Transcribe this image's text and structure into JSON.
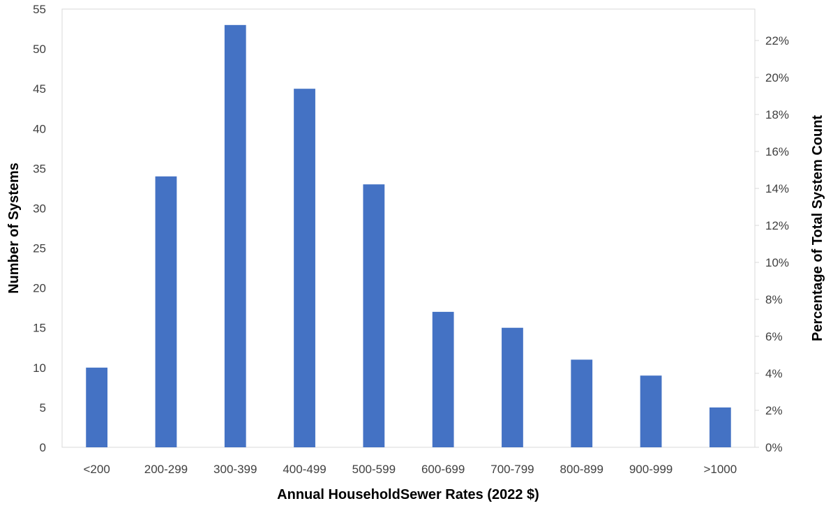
{
  "chart_data": {
    "type": "bar",
    "categories": [
      "<200",
      "200-299",
      "300-399",
      "400-499",
      "500-599",
      "600-699",
      "700-799",
      "800-899",
      "900-999",
      ">1000"
    ],
    "values": [
      10,
      34,
      53,
      45,
      33,
      17,
      15,
      11,
      9,
      5
    ],
    "xlabel": "Annual HouseholdSewer Rates (2022 $)",
    "ylabel": "Number of Systems",
    "y2label": "Percentage of Total System Count",
    "ylim": [
      0,
      55
    ],
    "yticks": [
      "0",
      "5",
      "10",
      "15",
      "20",
      "25",
      "30",
      "35",
      "40",
      "45",
      "50",
      "55"
    ],
    "y2lim_percent": [
      0,
      23.7
    ],
    "y2ticks": [
      "0%",
      "2%",
      "4%",
      "6%",
      "8%",
      "10%",
      "12%",
      "14%",
      "16%",
      "18%",
      "20%",
      "22%"
    ],
    "bar_color": "#4472C4",
    "grid": false,
    "legend": "none"
  }
}
